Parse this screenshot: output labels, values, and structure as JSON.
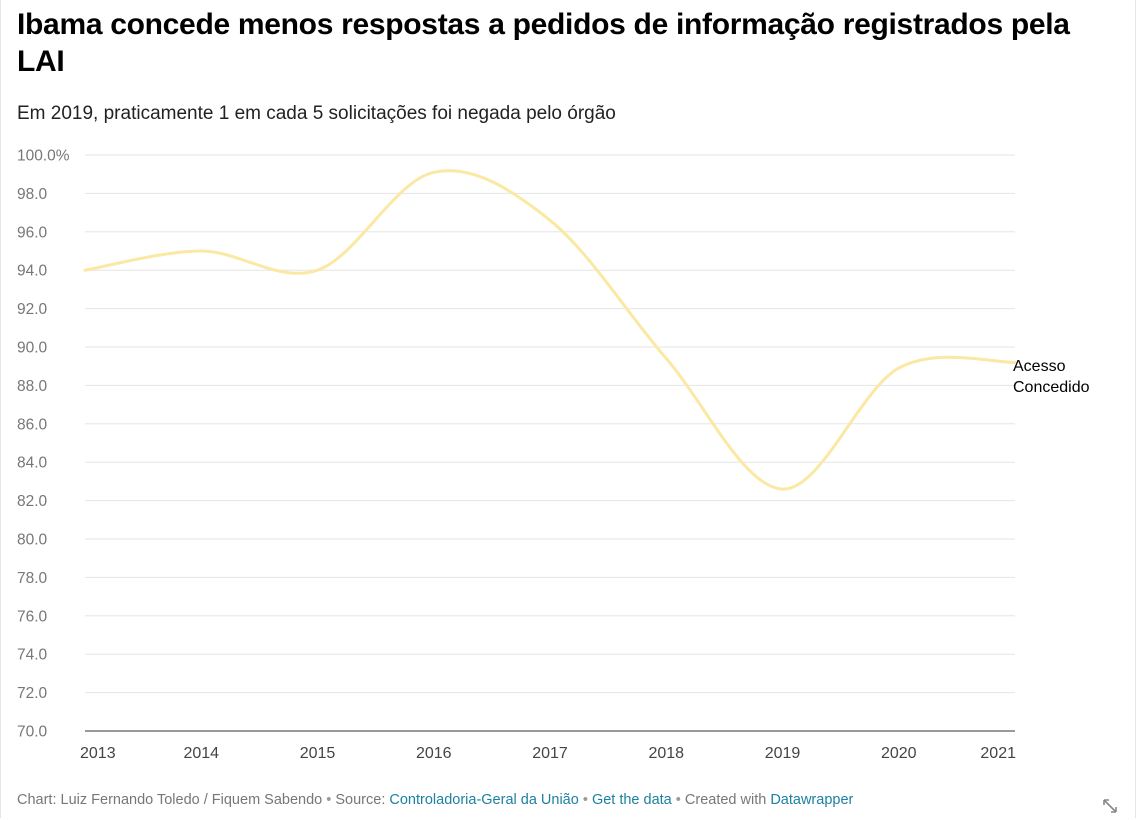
{
  "header": {
    "title": "Ibama concede menos respostas a pedidos de informação registrados pela LAI",
    "subtitle": "Em 2019, praticamente 1 em cada 5 solicitações foi negada pelo órgão"
  },
  "chart_data": {
    "type": "line",
    "title": "Ibama concede menos respostas a pedidos de informação registrados pela LAI",
    "subtitle": "Em 2019, praticamente 1 em cada 5 solicitações foi negada pelo órgão",
    "xlabel": "",
    "ylabel": "",
    "x": [
      2013,
      2014,
      2015,
      2016,
      2017,
      2018,
      2019,
      2020,
      2021
    ],
    "x_tick_labels": [
      "2013",
      "2014",
      "2015",
      "2016",
      "2017",
      "2018",
      "2019",
      "2020",
      "2021"
    ],
    "ylim": [
      70,
      100
    ],
    "y_ticks": [
      100,
      98,
      96,
      94,
      92,
      90,
      88,
      86,
      84,
      82,
      80,
      78,
      76,
      74,
      72,
      70
    ],
    "y_tick_labels": [
      "100.0%",
      "98.0",
      "96.0",
      "94.0",
      "92.0",
      "90.0",
      "88.0",
      "86.0",
      "84.0",
      "82.0",
      "80.0",
      "78.0",
      "76.0",
      "74.0",
      "72.0",
      "70.0"
    ],
    "grid": true,
    "series": [
      {
        "name": "Acesso Concedido",
        "label_lines": [
          "Acesso",
          "Concedido"
        ],
        "color": "#fae8a3",
        "values": [
          94.0,
          95.0,
          94.0,
          99.1,
          96.6,
          89.4,
          82.6,
          88.9,
          89.2
        ]
      }
    ]
  },
  "footer": {
    "credit": "Chart: Luiz Fernando Toledo / Fiquem Sabendo",
    "source_prefix": "Source:",
    "source_link": "Controladoria-Geral da União",
    "get_data": "Get the data",
    "created_prefix": "Created with",
    "tool_link": "Datawrapper",
    "separator": "•"
  },
  "colors": {
    "link": "#1d81a2",
    "grid": "#e5e5e5",
    "axis": "#333333",
    "line": "#fae8a3"
  },
  "icons": {
    "resize": "resize-arrows-icon"
  }
}
